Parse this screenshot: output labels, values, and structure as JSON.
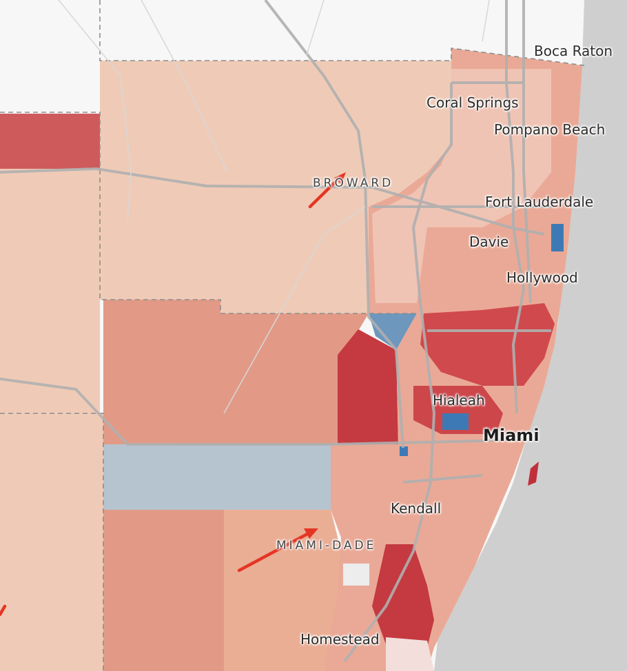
{
  "map": {
    "counties": [
      {
        "id": "broward",
        "label": "BROWARD"
      },
      {
        "id": "miami-dade",
        "label": "MIAMI-DADE"
      }
    ],
    "cities": [
      {
        "id": "boca-raton",
        "label": "Boca Raton"
      },
      {
        "id": "coral-springs",
        "label": "Coral Springs"
      },
      {
        "id": "pompano-beach",
        "label": "Pompano Beach"
      },
      {
        "id": "fort-lauderdale",
        "label": "Fort Lauderdale"
      },
      {
        "id": "davie",
        "label": "Davie"
      },
      {
        "id": "hollywood",
        "label": "Hollywood"
      },
      {
        "id": "hialeah",
        "label": "Hialeah"
      },
      {
        "id": "miami",
        "label": "Miami"
      },
      {
        "id": "kendall",
        "label": "Kendall"
      },
      {
        "id": "homestead",
        "label": "Homestead"
      }
    ],
    "colors": {
      "background": "#f7f7f7",
      "ocean": "#cfcfcf",
      "light_red": "#efcbb7",
      "mid_red": "#e29a86",
      "strong_red": "#d9534f",
      "deep_red": "#c0303a",
      "light_blue": "#b6c4d0",
      "blue": "#3d7ab5",
      "arrow": "#e53524",
      "road": "#b9b9b9"
    },
    "icons": [
      "shift-arrow-icon"
    ]
  }
}
